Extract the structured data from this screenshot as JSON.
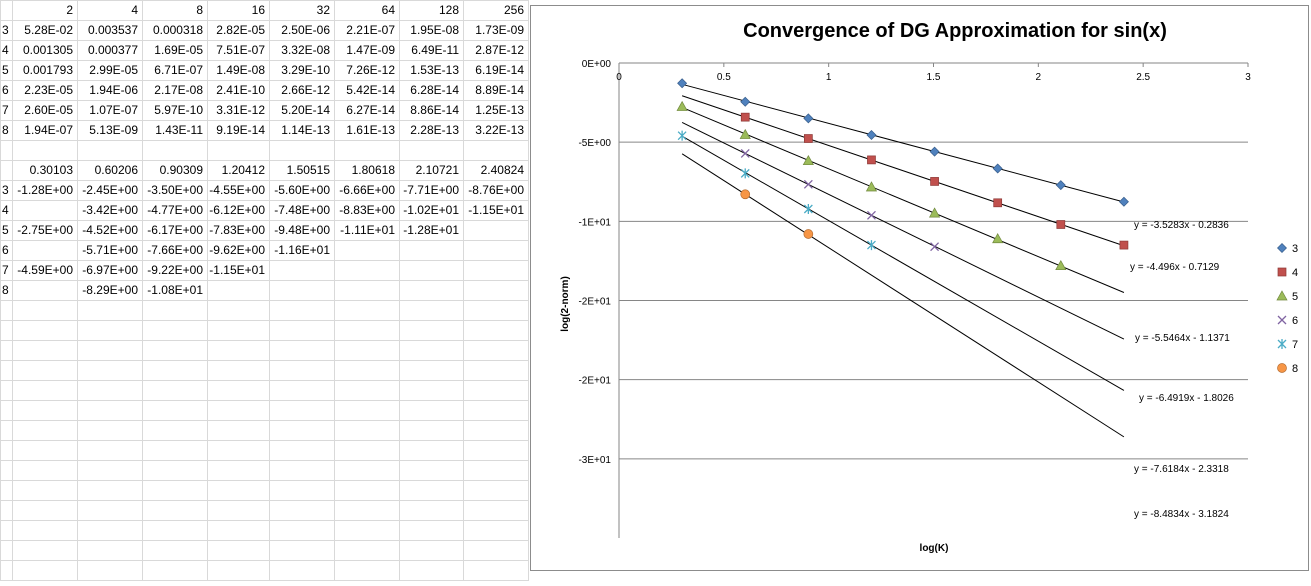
{
  "sheet": {
    "header_row": [
      "2",
      "4",
      "8",
      "16",
      "32",
      "64",
      "128",
      "256"
    ],
    "norm_rows": [
      {
        "label": "3",
        "values": [
          "5.28E-02",
          "0.003537",
          "0.000318",
          "2.82E-05",
          "2.50E-06",
          "2.21E-07",
          "1.95E-08",
          "1.73E-09"
        ]
      },
      {
        "label": "4",
        "values": [
          "0.001305",
          "0.000377",
          "1.69E-05",
          "7.51E-07",
          "3.32E-08",
          "1.47E-09",
          "6.49E-11",
          "2.87E-12"
        ]
      },
      {
        "label": "5",
        "values": [
          "0.001793",
          "2.99E-05",
          "6.71E-07",
          "1.49E-08",
          "3.29E-10",
          "7.26E-12",
          "1.53E-13",
          "6.19E-14"
        ]
      },
      {
        "label": "6",
        "values": [
          "2.23E-05",
          "1.94E-06",
          "2.17E-08",
          "2.41E-10",
          "2.66E-12",
          "5.42E-14",
          "6.28E-14",
          "8.89E-14"
        ]
      },
      {
        "label": "7",
        "values": [
          "2.60E-05",
          "1.07E-07",
          "5.97E-10",
          "3.31E-12",
          "5.20E-14",
          "6.27E-14",
          "8.86E-14",
          "1.25E-13"
        ]
      },
      {
        "label": "8",
        "values": [
          "1.94E-07",
          "5.13E-09",
          "1.43E-11",
          "9.19E-14",
          "1.14E-13",
          "1.61E-13",
          "2.28E-13",
          "3.22E-13"
        ]
      }
    ],
    "log_header_row": [
      "0.30103",
      "0.60206",
      "0.90309",
      "1.20412",
      "1.50515",
      "1.80618",
      "2.10721",
      "2.40824"
    ],
    "log_rows": [
      {
        "label": "3",
        "values": [
          "-1.28E+00",
          "-2.45E+00",
          "-3.50E+00",
          "-4.55E+00",
          "-5.60E+00",
          "-6.66E+00",
          "-7.71E+00",
          "-8.76E+00"
        ]
      },
      {
        "label": "4",
        "values": [
          "",
          "-3.42E+00",
          "-4.77E+00",
          "-6.12E+00",
          "-7.48E+00",
          "-8.83E+00",
          "-1.02E+01",
          "-1.15E+01"
        ]
      },
      {
        "label": "5",
        "values": [
          "-2.75E+00",
          "-4.52E+00",
          "-6.17E+00",
          "-7.83E+00",
          "-9.48E+00",
          "-1.11E+01",
          "-1.28E+01",
          ""
        ]
      },
      {
        "label": "6",
        "values": [
          "",
          "-5.71E+00",
          "-7.66E+00",
          "-9.62E+00",
          "-1.16E+01",
          "",
          "",
          ""
        ]
      },
      {
        "label": "7",
        "values": [
          "-4.59E+00",
          "-6.97E+00",
          "-9.22E+00",
          "-1.15E+01",
          "",
          "",
          "",
          ""
        ]
      },
      {
        "label": "8",
        "values": [
          "",
          "-8.29E+00",
          "-1.08E+01",
          "",
          "",
          "",
          "",
          ""
        ]
      }
    ]
  },
  "chart_data": {
    "type": "scatter",
    "title": "Convergence of DG Approximation for sin(x)",
    "xlabel": "log(K)",
    "ylabel": "log(2-norm)",
    "xlim": [
      0,
      3
    ],
    "ylim": [
      -30,
      0
    ],
    "x_ticks": [
      "0",
      "0.5",
      "1",
      "1.5",
      "2",
      "2.5",
      "3"
    ],
    "x_tick_values": [
      0,
      0.5,
      1,
      1.5,
      2,
      2.5,
      3
    ],
    "y_ticks": [
      "0E+00",
      "-5E+00",
      "-1E+01",
      "-2E+01",
      "-2E+01",
      "-3E+01"
    ],
    "y_tick_values": [
      0,
      -5,
      -10,
      -15,
      -20,
      -25
    ],
    "grid": "horizontal",
    "legend_position": "right",
    "series": [
      {
        "name": "3",
        "marker": "diamond",
        "color": "#4f81bd",
        "x": [
          0.30103,
          0.60206,
          0.90309,
          1.20412,
          1.50515,
          1.80618,
          2.10721,
          2.40824
        ],
        "y": [
          -1.28,
          -2.45,
          -3.5,
          -4.55,
          -5.6,
          -6.66,
          -7.71,
          -8.76
        ],
        "trendline": {
          "slope": -3.5283,
          "intercept": -0.2836,
          "x_range": [
            0.30103,
            2.40824
          ],
          "label": "y = -3.5283x - 0.2836"
        }
      },
      {
        "name": "4",
        "marker": "square",
        "color": "#c0504d",
        "x": [
          0.60206,
          0.90309,
          1.20412,
          1.50515,
          1.80618,
          2.10721,
          2.40824
        ],
        "y": [
          -3.42,
          -4.77,
          -6.12,
          -7.48,
          -8.83,
          -10.2,
          -11.5
        ],
        "trendline": {
          "slope": -4.496,
          "intercept": -0.7129,
          "x_range": [
            0.30103,
            2.40824
          ],
          "label": "y = -4.496x - 0.7129"
        }
      },
      {
        "name": "5",
        "marker": "triangle",
        "color": "#9bbb59",
        "x": [
          0.30103,
          0.60206,
          0.90309,
          1.20412,
          1.50515,
          1.80618,
          2.10721
        ],
        "y": [
          -2.75,
          -4.52,
          -6.17,
          -7.83,
          -9.48,
          -11.1,
          -12.8
        ],
        "trendline": {
          "slope": -5.5464,
          "intercept": -1.1371,
          "x_range": [
            0.30103,
            2.40824
          ],
          "label": "y = -5.5464x - 1.1371"
        }
      },
      {
        "name": "6",
        "marker": "x",
        "color": "#8064a2",
        "x": [
          0.60206,
          0.90309,
          1.20412,
          1.50515
        ],
        "y": [
          -5.71,
          -7.66,
          -9.62,
          -11.6
        ],
        "trendline": {
          "slope": -6.4919,
          "intercept": -1.8026,
          "x_range": [
            0.30103,
            2.40824
          ],
          "label": "y = -6.4919x - 1.8026"
        }
      },
      {
        "name": "7",
        "marker": "star",
        "color": "#4bacc6",
        "x": [
          0.30103,
          0.60206,
          0.90309,
          1.20412
        ],
        "y": [
          -4.59,
          -6.97,
          -9.22,
          -11.5
        ],
        "trendline": {
          "slope": -7.6184,
          "intercept": -2.3318,
          "x_range": [
            0.30103,
            2.40824
          ],
          "label": "y = -7.6184x - 2.3318"
        }
      },
      {
        "name": "8",
        "marker": "circle",
        "color": "#f79646",
        "x": [
          0.60206,
          0.90309
        ],
        "y": [
          -8.29,
          -10.8
        ],
        "trendline": {
          "slope": -8.4834,
          "intercept": -3.1824,
          "x_range": [
            0.30103,
            2.40824
          ],
          "label": "y = -8.4834x - 3.1824"
        }
      }
    ]
  }
}
